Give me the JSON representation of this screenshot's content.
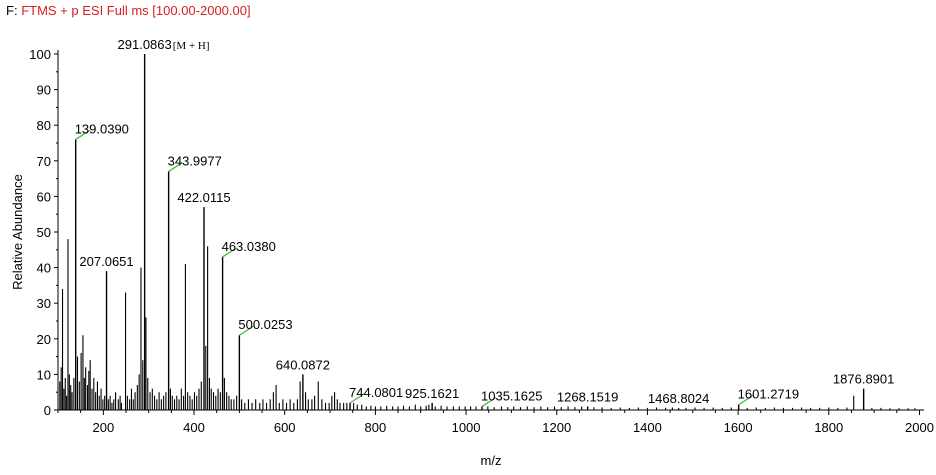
{
  "colors": {
    "header_filter": "#d42020",
    "axis": "#000000",
    "peak": "#000000",
    "leader": "#3fbf3f"
  },
  "chart_data": {
    "type": "line",
    "header": {
      "prefix": "F:",
      "filter": "FTMS + p ESI Full ms [100.00-2000.00]"
    },
    "xlabel": "m/z",
    "ylabel": "Relative Abundance",
    "xlim": [
      100,
      2010
    ],
    "ylim": [
      0,
      100
    ],
    "xticks": [
      200,
      400,
      600,
      800,
      1000,
      1200,
      1400,
      1600,
      1800,
      2000
    ],
    "yticks": [
      0,
      10,
      20,
      30,
      40,
      50,
      60,
      70,
      80,
      90,
      100
    ],
    "labeled_peaks": [
      {
        "mz": 139.039,
        "intensity": 76,
        "label": "139.0390",
        "leader": true
      },
      {
        "mz": 207.0651,
        "intensity": 39,
        "label": "207.0651",
        "leader": false
      },
      {
        "mz": 291.0863,
        "intensity": 100,
        "label": "291.0863",
        "leader": false,
        "annotation": "[M + H]"
      },
      {
        "mz": 343.9977,
        "intensity": 67,
        "label": "343.9977",
        "leader": true
      },
      {
        "mz": 422.0115,
        "intensity": 57,
        "label": "422.0115",
        "leader": false
      },
      {
        "mz": 463.038,
        "intensity": 43,
        "label": "463.0380",
        "leader": true
      },
      {
        "mz": 500.0253,
        "intensity": 21,
        "label": "500.0253",
        "leader": true
      },
      {
        "mz": 640.0872,
        "intensity": 10,
        "label": "640.0872",
        "leader": false
      },
      {
        "mz": 744.0801,
        "intensity": 2,
        "label": "744.0801",
        "leader": true
      },
      {
        "mz": 925.1621,
        "intensity": 2,
        "label": "925.1621",
        "leader": false
      },
      {
        "mz": 1035.1625,
        "intensity": 1,
        "label": "1035.1625",
        "leader": true
      },
      {
        "mz": 1268.1519,
        "intensity": 1,
        "label": "1268.1519",
        "leader": false
      },
      {
        "mz": 1468.8024,
        "intensity": 0.5,
        "label": "1468.8024",
        "leader": false
      },
      {
        "mz": 1601.2719,
        "intensity": 1.5,
        "label": "1601.2719",
        "leader": true
      },
      {
        "mz": 1876.8901,
        "intensity": 6,
        "label": "1876.8901",
        "leader": false
      }
    ],
    "other_peaks": [
      [
        104,
        8
      ],
      [
        107,
        12
      ],
      [
        110,
        34
      ],
      [
        113,
        6
      ],
      [
        116,
        9
      ],
      [
        119,
        4
      ],
      [
        122,
        48
      ],
      [
        125,
        10
      ],
      [
        128,
        7
      ],
      [
        131,
        5
      ],
      [
        135,
        9
      ],
      [
        143,
        15
      ],
      [
        147,
        8
      ],
      [
        151,
        16
      ],
      [
        155,
        21
      ],
      [
        158,
        9
      ],
      [
        161,
        12
      ],
      [
        165,
        7
      ],
      [
        168,
        11
      ],
      [
        171,
        14
      ],
      [
        175,
        6
      ],
      [
        179,
        9
      ],
      [
        183,
        5
      ],
      [
        187,
        8
      ],
      [
        191,
        4
      ],
      [
        195,
        6
      ],
      [
        199,
        3
      ],
      [
        203,
        4
      ],
      [
        211,
        3
      ],
      [
        215,
        4
      ],
      [
        219,
        2
      ],
      [
        223,
        3
      ],
      [
        227,
        5
      ],
      [
        233,
        3
      ],
      [
        237,
        4
      ],
      [
        240,
        2
      ],
      [
        249,
        33
      ],
      [
        253,
        4
      ],
      [
        258,
        3
      ],
      [
        262,
        6
      ],
      [
        266,
        3
      ],
      [
        270,
        5
      ],
      [
        275,
        7
      ],
      [
        279,
        10
      ],
      [
        283,
        40
      ],
      [
        287,
        14
      ],
      [
        294,
        26
      ],
      [
        298,
        9
      ],
      [
        303,
        5
      ],
      [
        308,
        6
      ],
      [
        313,
        4
      ],
      [
        318,
        3
      ],
      [
        323,
        5
      ],
      [
        328,
        3
      ],
      [
        333,
        4
      ],
      [
        338,
        5
      ],
      [
        348,
        6
      ],
      [
        352,
        4
      ],
      [
        357,
        3
      ],
      [
        362,
        4
      ],
      [
        367,
        3
      ],
      [
        372,
        6
      ],
      [
        377,
        4
      ],
      [
        381,
        41
      ],
      [
        386,
        5
      ],
      [
        391,
        4
      ],
      [
        396,
        3
      ],
      [
        401,
        5
      ],
      [
        406,
        4
      ],
      [
        411,
        6
      ],
      [
        416,
        8
      ],
      [
        426,
        18
      ],
      [
        430,
        46
      ],
      [
        434,
        9
      ],
      [
        438,
        6
      ],
      [
        443,
        5
      ],
      [
        448,
        4
      ],
      [
        453,
        6
      ],
      [
        458,
        5
      ],
      [
        467,
        9
      ],
      [
        472,
        5
      ],
      [
        477,
        4
      ],
      [
        482,
        3
      ],
      [
        488,
        3
      ],
      [
        494,
        4
      ],
      [
        505,
        3
      ],
      [
        512,
        2
      ],
      [
        520,
        3
      ],
      [
        528,
        2
      ],
      [
        536,
        3
      ],
      [
        545,
        2
      ],
      [
        552,
        3
      ],
      [
        560,
        2
      ],
      [
        568,
        3
      ],
      [
        575,
        5
      ],
      [
        581,
        7
      ],
      [
        588,
        2
      ],
      [
        596,
        3
      ],
      [
        604,
        2
      ],
      [
        612,
        3
      ],
      [
        620,
        2
      ],
      [
        628,
        3
      ],
      [
        634,
        8
      ],
      [
        646,
        5
      ],
      [
        652,
        3
      ],
      [
        660,
        3
      ],
      [
        666,
        4
      ],
      [
        674,
        8
      ],
      [
        682,
        3
      ],
      [
        690,
        2
      ],
      [
        698,
        2
      ],
      [
        704,
        4
      ],
      [
        710,
        5
      ],
      [
        716,
        3
      ],
      [
        722,
        2
      ],
      [
        730,
        2
      ],
      [
        737,
        2
      ],
      [
        752,
        2
      ],
      [
        760,
        1.5
      ],
      [
        770,
        1.5
      ],
      [
        780,
        1
      ],
      [
        790,
        1.2
      ],
      [
        800,
        1
      ],
      [
        812,
        1
      ],
      [
        825,
        1.2
      ],
      [
        838,
        1
      ],
      [
        850,
        1
      ],
      [
        862,
        1.2
      ],
      [
        875,
        1
      ],
      [
        888,
        1.5
      ],
      [
        900,
        1
      ],
      [
        912,
        1.2
      ],
      [
        918,
        1.5
      ],
      [
        932,
        1
      ],
      [
        945,
        1.2
      ],
      [
        958,
        1
      ],
      [
        972,
        1
      ],
      [
        985,
        1
      ],
      [
        998,
        1
      ],
      [
        1010,
        1
      ],
      [
        1022,
        1
      ],
      [
        1048,
        1
      ],
      [
        1062,
        0.8
      ],
      [
        1078,
        1
      ],
      [
        1092,
        0.8
      ],
      [
        1105,
        1
      ],
      [
        1120,
        0.8
      ],
      [
        1135,
        1
      ],
      [
        1150,
        0.8
      ],
      [
        1165,
        1
      ],
      [
        1180,
        0.8
      ],
      [
        1195,
        1
      ],
      [
        1210,
        0.8
      ],
      [
        1225,
        1
      ],
      [
        1240,
        0.8
      ],
      [
        1255,
        1
      ],
      [
        1282,
        0.8
      ],
      [
        1300,
        0.7
      ],
      [
        1320,
        0.6
      ],
      [
        1340,
        0.7
      ],
      [
        1360,
        0.6
      ],
      [
        1380,
        0.7
      ],
      [
        1400,
        0.6
      ],
      [
        1420,
        0.7
      ],
      [
        1440,
        0.6
      ],
      [
        1455,
        0.7
      ],
      [
        1485,
        0.6
      ],
      [
        1505,
        0.7
      ],
      [
        1525,
        0.6
      ],
      [
        1545,
        0.7
      ],
      [
        1565,
        0.6
      ],
      [
        1585,
        0.7
      ],
      [
        1620,
        0.6
      ],
      [
        1640,
        0.7
      ],
      [
        1660,
        0.6
      ],
      [
        1680,
        0.7
      ],
      [
        1700,
        0.6
      ],
      [
        1720,
        0.6
      ],
      [
        1740,
        0.7
      ],
      [
        1760,
        0.6
      ],
      [
        1780,
        0.6
      ],
      [
        1800,
        0.7
      ],
      [
        1820,
        0.6
      ],
      [
        1840,
        0.7
      ],
      [
        1855,
        4
      ],
      [
        1895,
        0.6
      ],
      [
        1915,
        0.6
      ],
      [
        1935,
        0.5
      ],
      [
        1955,
        0.5
      ],
      [
        1975,
        0.5
      ],
      [
        1990,
        0.5
      ]
    ]
  }
}
